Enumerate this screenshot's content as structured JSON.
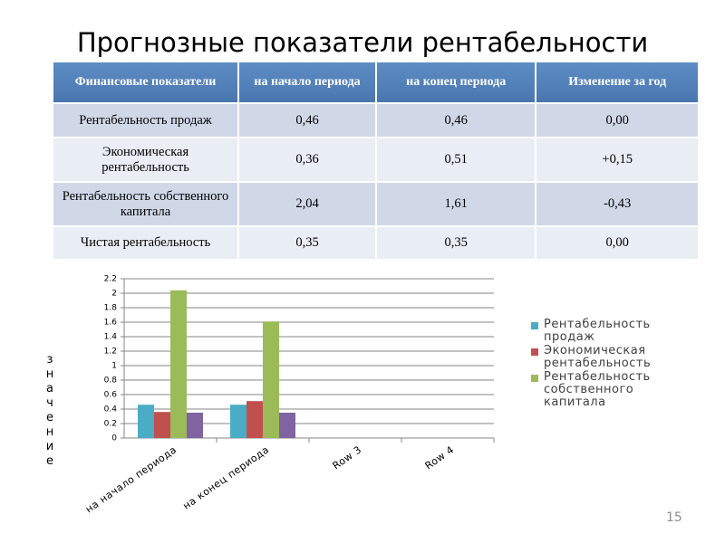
{
  "slide": {
    "title": "Прогнозные показатели рентабельности",
    "page_number": "15"
  },
  "table": {
    "header": [
      "Финансовые показатели",
      "на начало периода",
      "на конец периода",
      "Изменение за год"
    ],
    "rows": [
      [
        "Рентабельность продаж",
        "0,46",
        "0,46",
        "0,00"
      ],
      [
        "Экономическая рентабельность",
        "0,36",
        "0,51",
        "+0,15"
      ],
      [
        "Рентабельность собственного капитала",
        "2,04",
        "1,61",
        "-0,43"
      ],
      [
        "Чистая рентабельность",
        "0,35",
        "0,35",
        "0,00"
      ]
    ]
  },
  "chart_data": {
    "type": "bar",
    "y_label": "значение",
    "categories": [
      "на начало периода",
      "на конец периода",
      "Row 3",
      "Row 4"
    ],
    "series": [
      {
        "name": "Рентабельность продаж",
        "color": "#4bacc6",
        "values": [
          0.46,
          0.46,
          null,
          null
        ]
      },
      {
        "name": "Экономическая рентабельность",
        "color": "#c0504d",
        "values": [
          0.36,
          0.51,
          null,
          null
        ]
      },
      {
        "name": "Рентабельность собственного капитала",
        "color": "#9bbb59",
        "values": [
          2.04,
          1.61,
          null,
          null
        ]
      },
      {
        "color": "#8064a2",
        "values": [
          0.35,
          0.35,
          null,
          null
        ]
      }
    ],
    "ylim": [
      0,
      2.2
    ],
    "yticks": [
      0,
      0.2,
      0.4,
      0.6,
      0.8,
      1,
      1.2,
      1.4,
      1.6,
      1.8,
      2,
      2.2
    ],
    "grid": true
  }
}
